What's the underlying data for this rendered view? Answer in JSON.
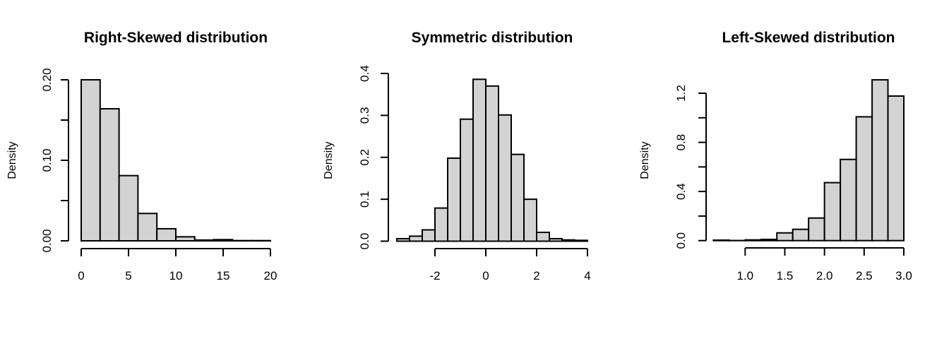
{
  "chart_data": [
    {
      "type": "bar",
      "title": "Right-Skewed distribution",
      "xlabel": "",
      "ylabel": "Density",
      "bin_edges": [
        0,
        2,
        4,
        6,
        8,
        10,
        12,
        14,
        16,
        18,
        20
      ],
      "values": [
        0.2,
        0.164,
        0.081,
        0.034,
        0.015,
        0.005,
        0.001,
        0.0015,
        0.0003,
        0.0003
      ],
      "xlim": [
        0,
        20
      ],
      "ylim": [
        0,
        0.2
      ],
      "x_ticks": [
        0,
        5,
        10,
        15,
        20
      ],
      "x_tick_labels": [
        "0",
        "5",
        "10",
        "15",
        "20"
      ],
      "y_ticks": [
        0,
        0.05,
        0.1,
        0.15,
        0.2
      ],
      "y_tick_labels": [
        "0.00",
        "",
        "0.10",
        "",
        "0.20"
      ],
      "bar_fill": "#d3d3d3",
      "bar_stroke": "#000000",
      "grid": false
    },
    {
      "type": "bar",
      "title": "Symmetric distribution",
      "xlabel": "",
      "ylabel": "Density",
      "bin_edges": [
        -3.5,
        -3,
        -2.5,
        -2,
        -1.5,
        -1,
        -0.5,
        0,
        0.5,
        1,
        1.5,
        2,
        2.5,
        3,
        3.5,
        4
      ],
      "values": [
        0.006,
        0.012,
        0.027,
        0.079,
        0.198,
        0.291,
        0.386,
        0.37,
        0.301,
        0.207,
        0.1,
        0.021,
        0.006,
        0.003,
        0.002
      ],
      "xlim": [
        -2,
        4
      ],
      "ylim": [
        0,
        0.4
      ],
      "x_ticks": [
        -2,
        0,
        2,
        4
      ],
      "x_tick_labels": [
        "-2",
        "0",
        "2",
        "4"
      ],
      "y_ticks": [
        0,
        0.1,
        0.2,
        0.3,
        0.4
      ],
      "y_tick_labels": [
        "0.0",
        "0.1",
        "0.2",
        "0.3",
        "0.4"
      ],
      "bar_fill": "#d3d3d3",
      "bar_stroke": "#000000",
      "grid": false
    },
    {
      "type": "bar",
      "title": "Left-Skewed distribution",
      "xlabel": "",
      "ylabel": "Density",
      "bin_edges": [
        0.6,
        0.8,
        1.0,
        1.2,
        1.4,
        1.6,
        1.8,
        2.0,
        2.2,
        2.4,
        2.6,
        2.8,
        3.0
      ],
      "values": [
        0.004,
        0.001,
        0.006,
        0.01,
        0.063,
        0.092,
        0.184,
        0.472,
        0.661,
        1.008,
        1.309,
        1.177
      ],
      "xlim": [
        1.0,
        3.0
      ],
      "ylim": [
        0,
        1.2
      ],
      "x_ticks": [
        1.0,
        1.5,
        2.0,
        2.5,
        3.0
      ],
      "x_tick_labels": [
        "1.0",
        "1.5",
        "2.0",
        "2.5",
        "3.0"
      ],
      "y_ticks": [
        0,
        0.2,
        0.4,
        0.6,
        0.8,
        1.0,
        1.2
      ],
      "y_tick_labels": [
        "0.0",
        "",
        "0.4",
        "",
        "0.8",
        "",
        "1.2"
      ],
      "bar_fill": "#d3d3d3",
      "bar_stroke": "#000000",
      "grid": false
    }
  ]
}
